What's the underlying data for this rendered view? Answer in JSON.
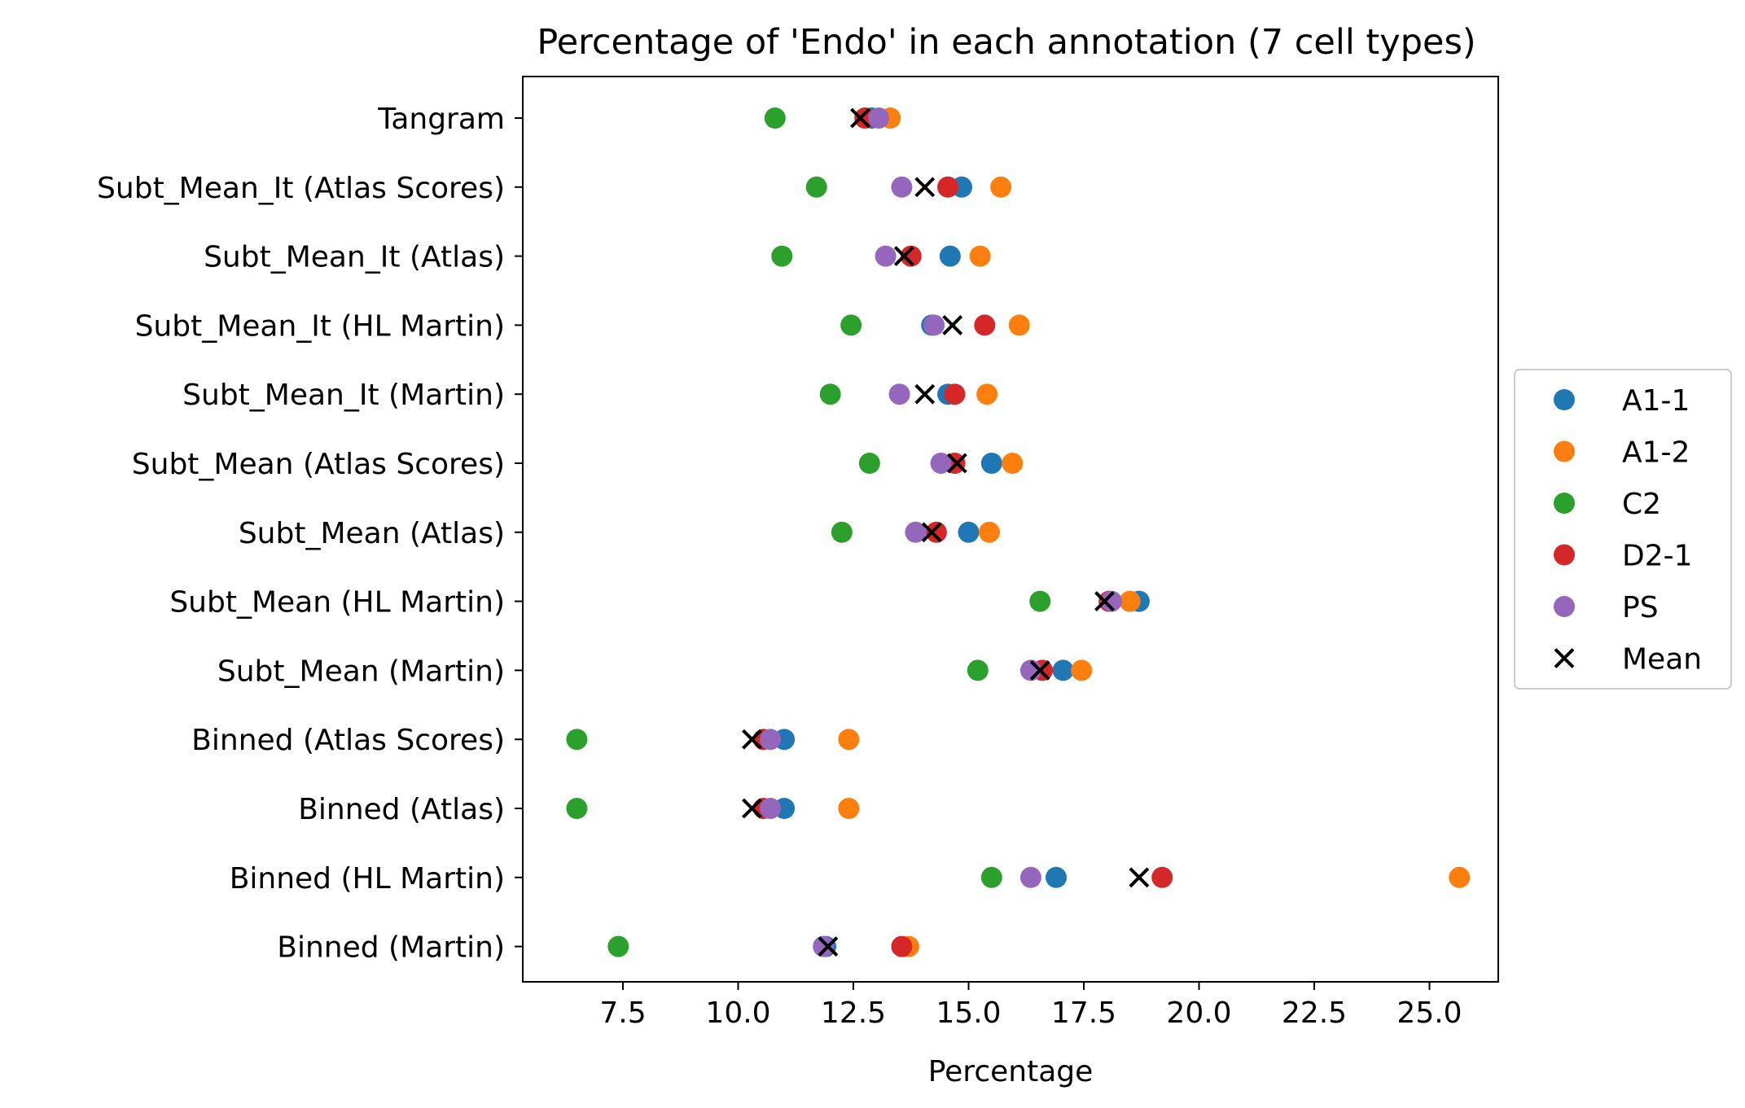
{
  "chart_data": {
    "type": "scatter",
    "title": "Percentage of 'Endo' in each annotation (7 cell types)",
    "xlabel": "Percentage",
    "ylabel": "",
    "xlim": [
      7.5,
      26.5
    ],
    "x_ticks": [
      "7.5",
      "10.0",
      "12.5",
      "15.0",
      "17.5",
      "20.0",
      "22.5",
      "25.0"
    ],
    "x_tick_values": [
      7.5,
      10.0,
      12.5,
      15.0,
      17.5,
      20.0,
      22.5,
      25.0
    ],
    "categories": [
      "Tangram",
      "Subt_Mean_It (Atlas Scores)",
      "Subt_Mean_It (Atlas)",
      "Subt_Mean_It (HL Martin)",
      "Subt_Mean_It (Martin)",
      "Subt_Mean (Atlas Scores)",
      "Subt_Mean (Atlas)",
      "Subt_Mean (HL Martin)",
      "Subt_Mean (Martin)",
      "Binned (Atlas Scores)",
      "Binned (Atlas)",
      "Binned (HL Martin)",
      "Binned (Martin)"
    ],
    "series": [
      {
        "name": "A1-1",
        "color": "#1f77b4",
        "marker": "circle",
        "values": [
          12.9,
          14.85,
          14.6,
          14.2,
          14.55,
          15.5,
          15.0,
          18.7,
          17.05,
          11.0,
          11.0,
          16.9,
          11.9
        ]
      },
      {
        "name": "A1-2",
        "color": "#ff7f0e",
        "marker": "circle",
        "values": [
          13.3,
          15.7,
          15.25,
          16.1,
          15.4,
          15.95,
          15.45,
          18.5,
          17.45,
          12.4,
          12.4,
          25.65,
          13.7
        ]
      },
      {
        "name": "C2",
        "color": "#2ca02c",
        "marker": "circle",
        "values": [
          10.8,
          11.7,
          10.95,
          12.45,
          12.0,
          12.85,
          12.25,
          16.55,
          15.2,
          6.5,
          6.5,
          15.5,
          7.4
        ]
      },
      {
        "name": "D2-1",
        "color": "#d62728",
        "marker": "circle",
        "values": [
          12.75,
          14.55,
          13.75,
          15.35,
          14.7,
          14.7,
          14.3,
          18.05,
          16.6,
          10.55,
          10.55,
          19.2,
          13.55
        ]
      },
      {
        "name": "PS",
        "color": "#9467bd",
        "marker": "circle",
        "values": [
          13.05,
          13.55,
          13.2,
          14.25,
          13.5,
          14.4,
          13.85,
          18.1,
          16.35,
          10.7,
          10.7,
          16.35,
          11.85
        ]
      },
      {
        "name": "Mean",
        "color": "#000000",
        "marker": "x",
        "values": [
          12.65,
          14.05,
          13.6,
          14.65,
          14.05,
          14.75,
          14.2,
          17.95,
          16.55,
          10.3,
          10.3,
          18.7,
          11.95
        ]
      }
    ],
    "legend": {
      "position": "right",
      "entries": [
        "A1-1",
        "A1-2",
        "C2",
        "D2-1",
        "PS",
        "Mean"
      ]
    },
    "grid": false
  }
}
